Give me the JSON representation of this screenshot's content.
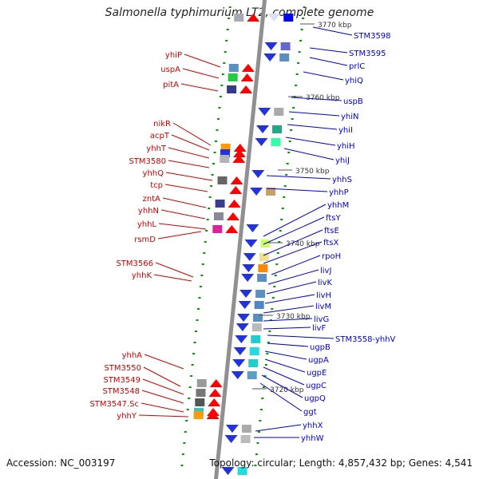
{
  "title": "Salmonella typhimurium LT2, complete genome",
  "footer": {
    "accession": "Accession: NC_003197",
    "topology": "Topology: circular; Length: 4,857,432 bp; Genes: 4,541"
  },
  "colors": {
    "backbone": "#909090",
    "forward_label": "#cc0000",
    "reverse_label": "#0000cc",
    "forward_arrow": "#ff0000",
    "reverse_arrow": "#0000ff",
    "tick": "#009900",
    "scale_text": "#333333"
  },
  "scale_labels": [
    "3770 kbp",
    "3760 kbp",
    "3750 kbp",
    "3740 kbp",
    "3730 kbp",
    "3720 kbp"
  ],
  "left_labels": [
    "yhiP",
    "uspA",
    "pitA",
    "nikR",
    "acpT",
    "yhhT",
    "STM3580",
    "yhhQ",
    "tcp",
    "zntA",
    "yhhN",
    "yhhL",
    "rsmD",
    "STM3566",
    "yhhK",
    "yhhA",
    "STM3550",
    "STM3549",
    "STM3548",
    "STM3547.Sc",
    "yhhY"
  ],
  "right_labels": [
    "STM3598",
    "STM3595",
    "prlC",
    "yhiQ",
    "uspB",
    "yhiN",
    "yhiI",
    "yhiH",
    "yhiJ",
    "yhhS",
    "yhhP",
    "yhhM",
    "ftsY",
    "ftsE",
    "ftsX",
    "rpoH",
    "livJ",
    "livK",
    "livH",
    "livM",
    "livG",
    "livF",
    "STM3558-yhhV",
    "ugpB",
    "ugpA",
    "ugpE",
    "ugpC",
    "ugpQ",
    "ggt",
    "yhhX",
    "yhhW"
  ]
}
